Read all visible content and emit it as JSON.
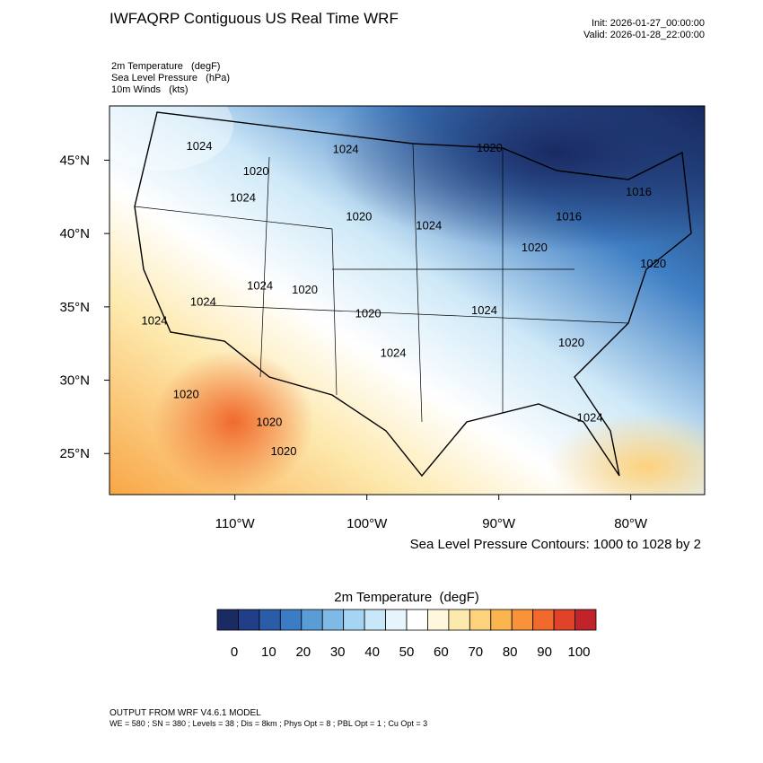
{
  "header": {
    "title": "IWFAQRP Contiguous US Real Time WRF",
    "init": "Init: 2026-01-27_00:00:00",
    "valid": "Valid: 2026-01-28_22:00:00",
    "fields": [
      "2m Temperature   (degF)",
      "Sea Level Pressure   (hPa)",
      "10m Winds   (kts)"
    ]
  },
  "map": {
    "lonlim": [
      -119.5,
      -74.4
    ],
    "latlim": [
      22.2,
      48.7
    ],
    "lat_ticks": [
      {
        "value": 25,
        "label": "25°N"
      },
      {
        "value": 30,
        "label": "30°N"
      },
      {
        "value": 35,
        "label": "35°N"
      },
      {
        "value": 40,
        "label": "40°N"
      },
      {
        "value": 45,
        "label": "45°N"
      }
    ],
    "lon_ticks": [
      {
        "value": -110,
        "label": "110°W"
      },
      {
        "value": -100,
        "label": "100°W"
      },
      {
        "value": -90,
        "label": "90°W"
      },
      {
        "value": -80,
        "label": "80°W"
      }
    ],
    "contour_labels": [
      {
        "text": "1024",
        "lon": -112.7,
        "lat": 46.0
      },
      {
        "text": "1024",
        "lon": -101.6,
        "lat": 45.8
      },
      {
        "text": "1020",
        "lon": -90.7,
        "lat": 45.9
      },
      {
        "text": "1020",
        "lon": -108.4,
        "lat": 44.3
      },
      {
        "text": "1024",
        "lon": -109.4,
        "lat": 42.5
      },
      {
        "text": "1020",
        "lon": -100.6,
        "lat": 41.2
      },
      {
        "text": "1024",
        "lon": -95.3,
        "lat": 40.6
      },
      {
        "text": "1016",
        "lon": -84.7,
        "lat": 41.2
      },
      {
        "text": "1020",
        "lon": -87.3,
        "lat": 39.1
      },
      {
        "text": "1020",
        "lon": -78.3,
        "lat": 38.0
      },
      {
        "text": "1016",
        "lon": -79.4,
        "lat": 42.9
      },
      {
        "text": "1024",
        "lon": -108.1,
        "lat": 36.5
      },
      {
        "text": "1020",
        "lon": -104.7,
        "lat": 36.2
      },
      {
        "text": "1024",
        "lon": -112.4,
        "lat": 35.4
      },
      {
        "text": "1024",
        "lon": -116.1,
        "lat": 34.1
      },
      {
        "text": "1020",
        "lon": -99.9,
        "lat": 34.6
      },
      {
        "text": "1024",
        "lon": -91.1,
        "lat": 34.8
      },
      {
        "text": "1024",
        "lon": -98.0,
        "lat": 31.9
      },
      {
        "text": "1020",
        "lon": -84.5,
        "lat": 32.6
      },
      {
        "text": "1020",
        "lon": -113.7,
        "lat": 29.1
      },
      {
        "text": "1020",
        "lon": -107.4,
        "lat": 27.2
      },
      {
        "text": "1020",
        "lon": -106.3,
        "lat": 25.2
      },
      {
        "text": "1024",
        "lon": -83.1,
        "lat": 27.5
      }
    ],
    "contour_note": "Sea Level Pressure Contours: 1000 to 1028 by 2"
  },
  "colorbar": {
    "title": "2m Temperature  (degF)",
    "colors": [
      "#1a2a63",
      "#203f86",
      "#2a5ca8",
      "#3c7cc4",
      "#5a9cd6",
      "#7fb9e6",
      "#a6d5f4",
      "#c8e7f8",
      "#e6f5fc",
      "#ffffff",
      "#fff8dc",
      "#fde9ad",
      "#fdd27c",
      "#fbb54f",
      "#f99238",
      "#f06a2c",
      "#e0422a",
      "#c1232a"
    ],
    "ticks": [
      0,
      10,
      20,
      30,
      40,
      50,
      60,
      70,
      80,
      90,
      100
    ]
  },
  "footer": [
    "OUTPUT FROM WRF V4.6.1 MODEL",
    "WE = 580 ; SN = 380 ; Levels = 38 ; Dis = 8km ; Phys Opt = 8 ; PBL Opt = 1 ; Cu Opt = 3"
  ]
}
